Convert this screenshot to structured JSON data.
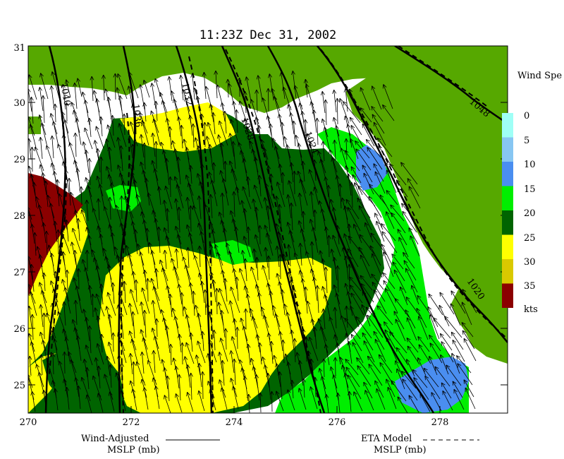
{
  "title": "11:23Z Dec 31, 2002",
  "x_ticks": [
    "270",
    "272",
    "274",
    "276",
    "278"
  ],
  "y_ticks": [
    "31",
    "30",
    "29",
    "28",
    "27",
    "26",
    "25"
  ],
  "legend": {
    "title": "Wind Spe",
    "labels": [
      "0",
      "5",
      "10",
      "15",
      "20",
      "25",
      "30",
      "35",
      "kts"
    ],
    "colors": [
      "#9ffff6",
      "#87c6f2",
      "#4a8ef0",
      "#00ee00",
      "#006400",
      "#ffff00",
      "#d9c900",
      "#8b0000"
    ]
  },
  "contour_labels": [
    "1040",
    "1036",
    "1032",
    "1028",
    "1024",
    "1020",
    "1048"
  ],
  "footer": {
    "wind_adjusted": "Wind-Adjusted",
    "wind_mslp": "MSLP (mb)",
    "eta_model": "ETA Model",
    "eta_mslp": "MSLP (mb)"
  },
  "colors": {
    "land": "#56a800",
    "grid_axis": "#000000"
  }
}
